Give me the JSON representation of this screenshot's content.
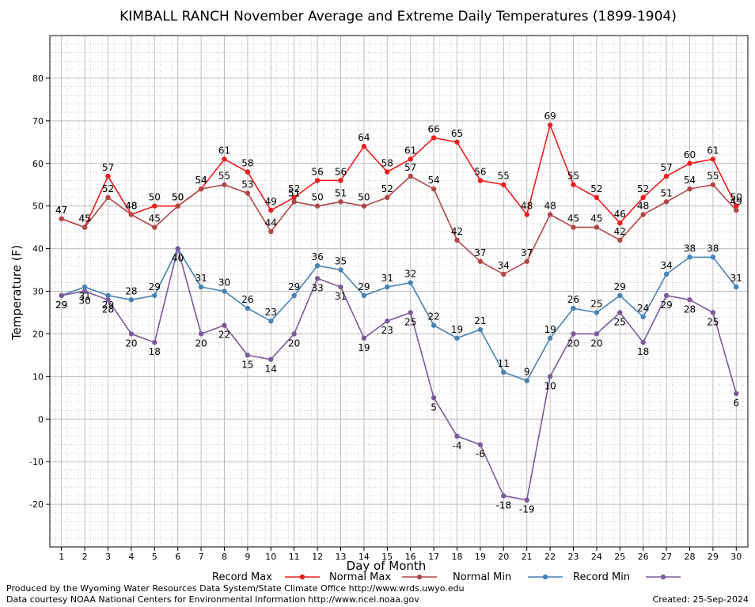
{
  "chart_data": {
    "type": "line",
    "title": "KIMBALL RANCH November Average and Extreme Daily Temperatures (1899-1904)",
    "xlabel": "Day of Month",
    "ylabel": "Temperature (F)",
    "ylim": [
      -30,
      90
    ],
    "xlim": [
      0.5,
      30.5
    ],
    "yticks": [
      -20,
      -10,
      0,
      10,
      20,
      30,
      40,
      50,
      60,
      70,
      80
    ],
    "x": [
      1,
      2,
      3,
      4,
      5,
      6,
      7,
      8,
      9,
      10,
      11,
      12,
      13,
      14,
      15,
      16,
      17,
      18,
      19,
      20,
      21,
      22,
      23,
      24,
      25,
      26,
      27,
      28,
      29,
      30
    ],
    "grid": true,
    "legend_position": "bottom",
    "series": [
      {
        "name": "Record Max",
        "color": "#ee1c1c",
        "values": [
          47,
          45,
          57,
          48,
          50,
          50,
          54,
          61,
          58,
          49,
          52,
          56,
          56,
          64,
          58,
          61,
          66,
          65,
          56,
          55,
          48,
          69,
          55,
          52,
          46,
          52,
          57,
          60,
          61,
          50
        ]
      },
      {
        "name": "Normal Max",
        "color": "#b14646",
        "values": [
          47,
          45,
          52,
          48,
          45,
          50,
          54,
          55,
          53,
          44,
          51,
          50,
          51,
          50,
          52,
          57,
          54,
          42,
          37,
          34,
          37,
          48,
          45,
          45,
          42,
          48,
          51,
          54,
          55,
          49
        ]
      },
      {
        "name": "Normal Min",
        "color": "#4682b4",
        "values": [
          29,
          31,
          29,
          28,
          29,
          40,
          31,
          30,
          26,
          23,
          29,
          36,
          35,
          29,
          31,
          32,
          22,
          19,
          21,
          11,
          9,
          19,
          26,
          25,
          29,
          24,
          34,
          38,
          38,
          31
        ]
      },
      {
        "name": "Record Min",
        "color": "#7a5a9a",
        "values": [
          29,
          30,
          28,
          20,
          18,
          40,
          20,
          22,
          15,
          14,
          20,
          33,
          31,
          19,
          23,
          25,
          5,
          -4,
          -6,
          -18,
          -19,
          10,
          20,
          20,
          25,
          18,
          29,
          28,
          25,
          6
        ]
      }
    ]
  },
  "footer": {
    "line1": "Produced by the Wyoming Water Resources Data System/State Climate Office http://www.wrds.uwyo.edu",
    "line2": "Data courtesy NOAA National Centers for Environmental Information http://www.ncei.noaa.gov",
    "created": "Created:  25-Sep-2024"
  }
}
